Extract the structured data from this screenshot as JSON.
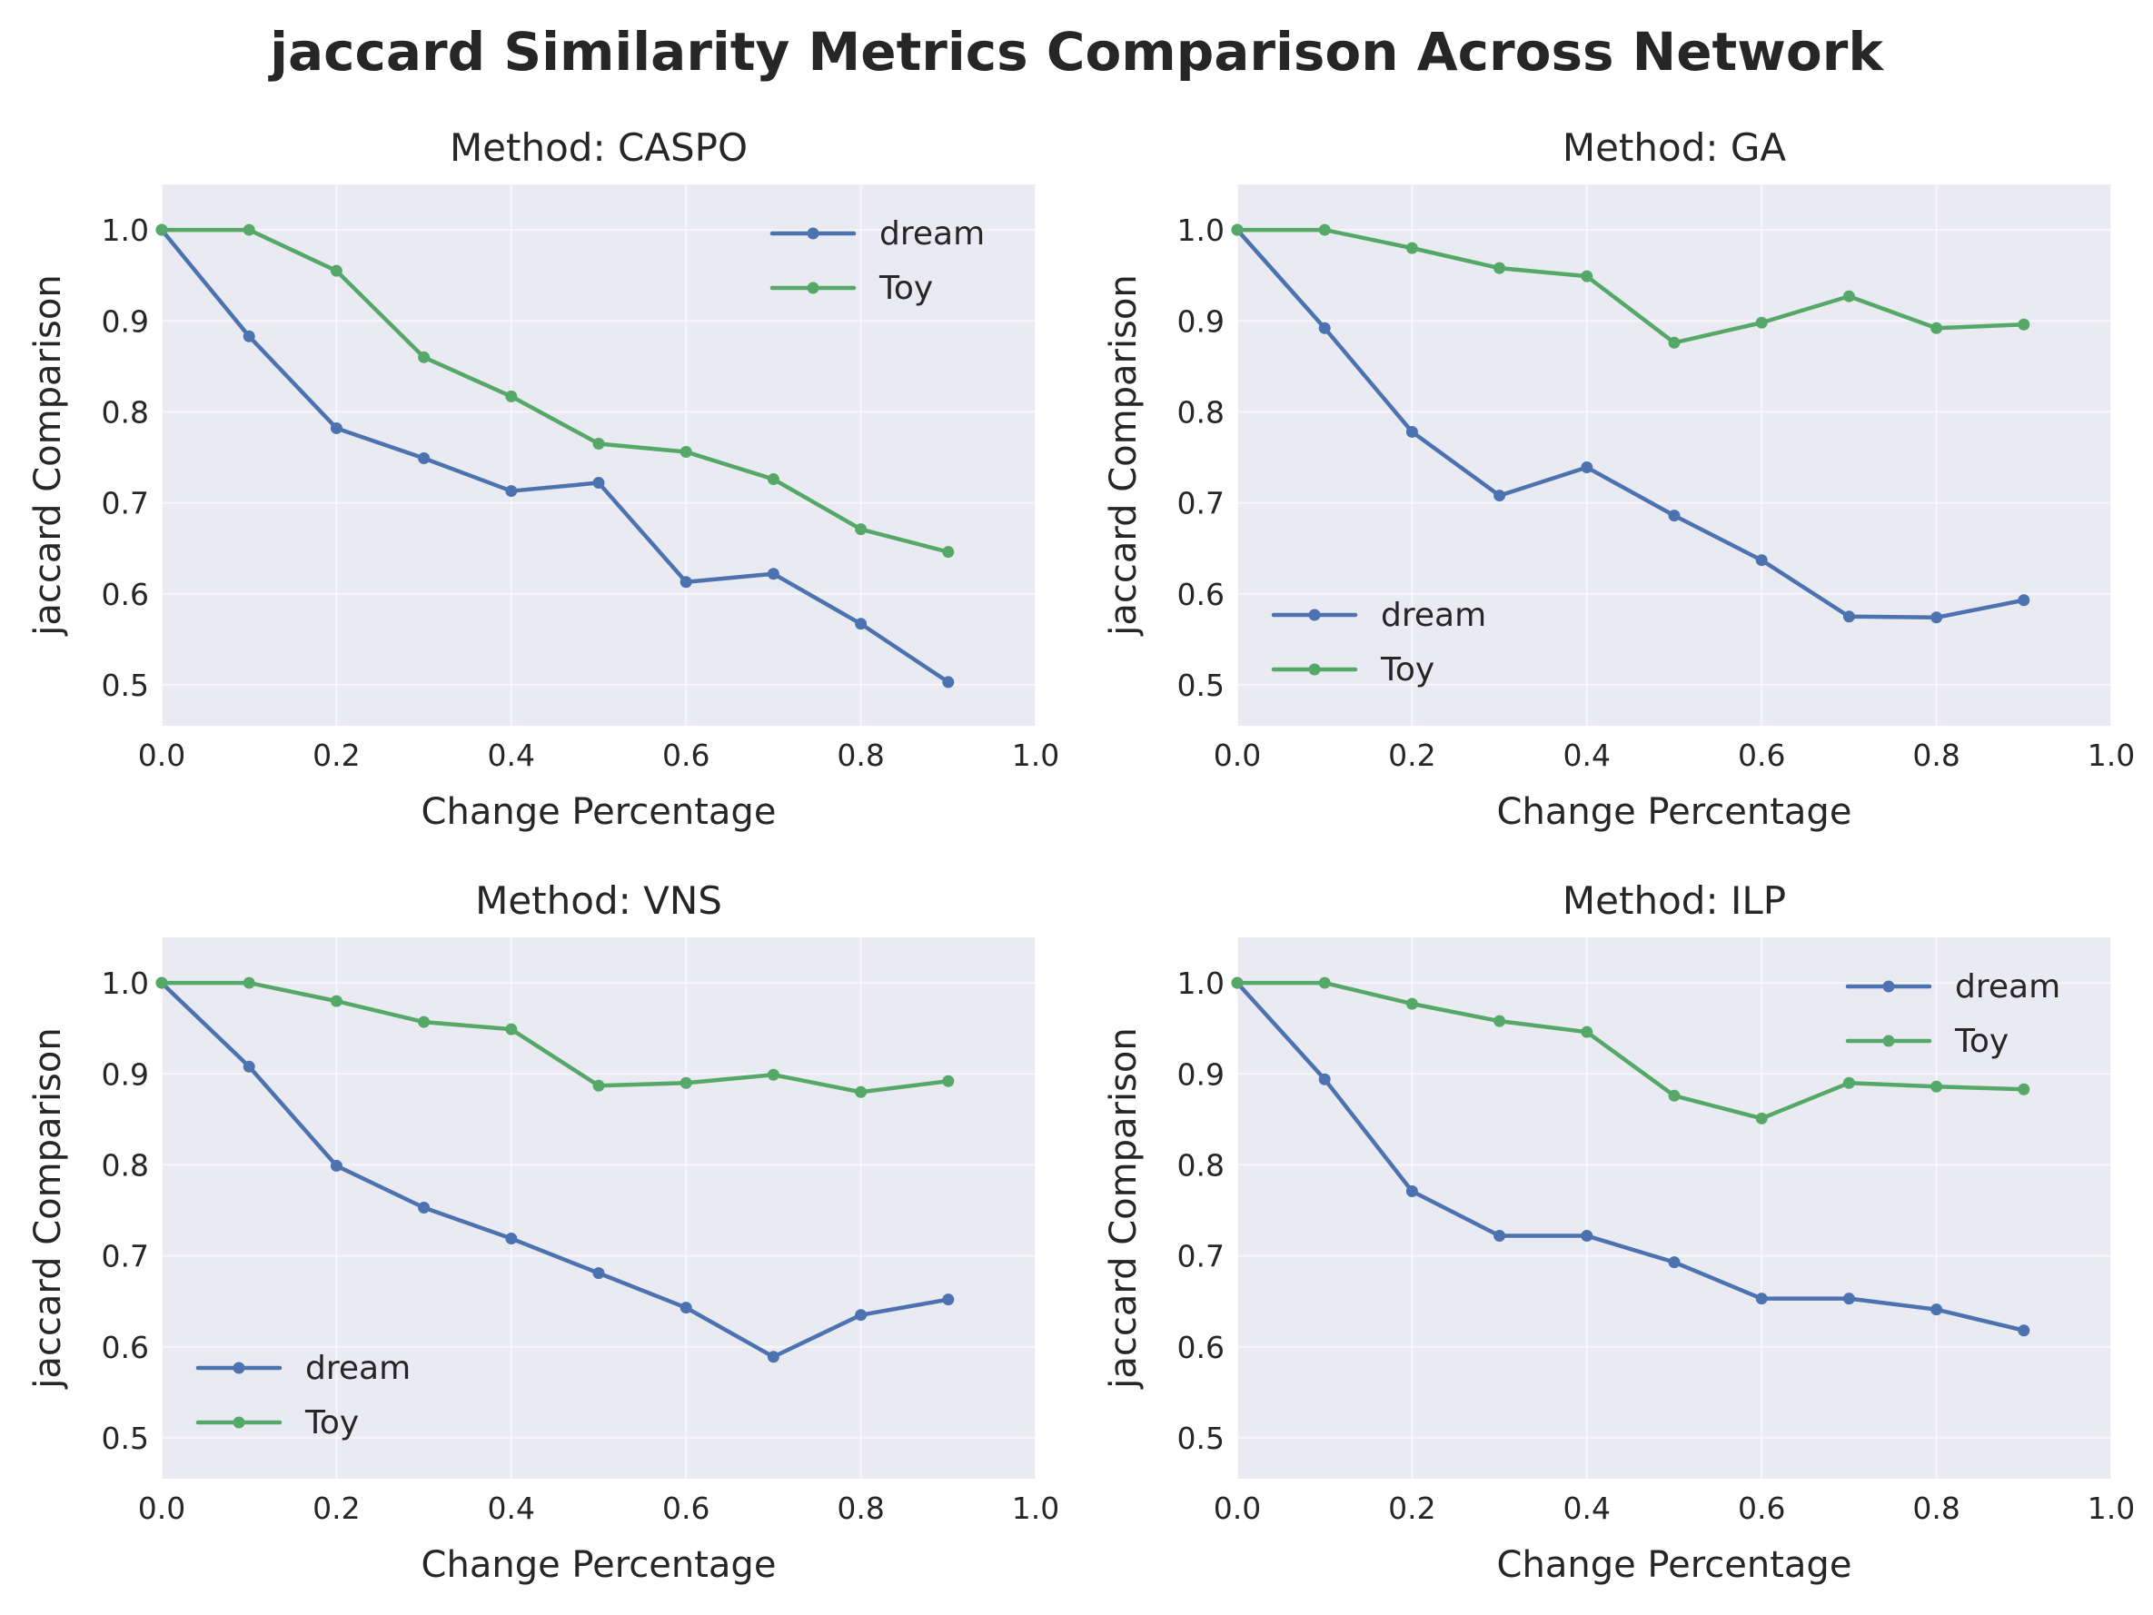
{
  "suptitle": "jaccard Similarity Metrics Comparison Across Network",
  "colors": {
    "dream": "#4c72b0",
    "Toy": "#55a868",
    "panel_bg": "#eaeaf2",
    "grid": "#ffffff"
  },
  "chart_data": [
    {
      "type": "line",
      "title": "Method: CASPO",
      "xlabel": "Change Percentage",
      "ylabel": "jaccard Comparison",
      "xlim": [
        0,
        1
      ],
      "ylim": [
        0.455,
        1.05
      ],
      "xticks": [
        "0.0",
        "0.2",
        "0.4",
        "0.6",
        "0.8",
        "1.0"
      ],
      "yticks": [
        "0.5",
        "0.6",
        "0.7",
        "0.8",
        "0.9",
        "1.0"
      ],
      "grid": true,
      "legend": "upper-right",
      "x": [
        0.0,
        0.1,
        0.2,
        0.3,
        0.4,
        0.5,
        0.6,
        0.7,
        0.8,
        0.9
      ],
      "series": [
        {
          "name": "dream",
          "values": [
            1.0,
            0.883,
            0.782,
            0.749,
            0.713,
            0.722,
            0.613,
            0.622,
            0.567,
            0.503
          ]
        },
        {
          "name": "Toy",
          "values": [
            1.0,
            1.0,
            0.955,
            0.86,
            0.817,
            0.765,
            0.756,
            0.726,
            0.671,
            0.646
          ]
        }
      ]
    },
    {
      "type": "line",
      "title": "Method: GA",
      "xlabel": "Change Percentage",
      "ylabel": "jaccard Comparison",
      "xlim": [
        0,
        1
      ],
      "ylim": [
        0.455,
        1.05
      ],
      "xticks": [
        "0.0",
        "0.2",
        "0.4",
        "0.6",
        "0.8",
        "1.0"
      ],
      "yticks": [
        "0.5",
        "0.6",
        "0.7",
        "0.8",
        "0.9",
        "1.0"
      ],
      "grid": true,
      "legend": "lower-left",
      "x": [
        0.0,
        0.1,
        0.2,
        0.3,
        0.4,
        0.5,
        0.6,
        0.7,
        0.8,
        0.9
      ],
      "series": [
        {
          "name": "dream",
          "values": [
            1.0,
            0.892,
            0.778,
            0.708,
            0.739,
            0.686,
            0.637,
            0.575,
            0.574,
            0.593
          ]
        },
        {
          "name": "Toy",
          "values": [
            1.0,
            1.0,
            0.98,
            0.958,
            0.949,
            0.876,
            0.898,
            0.927,
            0.892,
            0.896
          ]
        }
      ]
    },
    {
      "type": "line",
      "title": "Method: VNS",
      "xlabel": "Change Percentage",
      "ylabel": "jaccard Comparison",
      "xlim": [
        0,
        1
      ],
      "ylim": [
        0.455,
        1.05
      ],
      "xticks": [
        "0.0",
        "0.2",
        "0.4",
        "0.6",
        "0.8",
        "1.0"
      ],
      "yticks": [
        "0.5",
        "0.6",
        "0.7",
        "0.8",
        "0.9",
        "1.0"
      ],
      "grid": true,
      "legend": "lower-left",
      "x": [
        0.0,
        0.1,
        0.2,
        0.3,
        0.4,
        0.5,
        0.6,
        0.7,
        0.8,
        0.9
      ],
      "series": [
        {
          "name": "dream",
          "values": [
            1.0,
            0.908,
            0.799,
            0.753,
            0.719,
            0.681,
            0.643,
            0.589,
            0.635,
            0.652
          ]
        },
        {
          "name": "Toy",
          "values": [
            1.0,
            1.0,
            0.98,
            0.957,
            0.949,
            0.887,
            0.89,
            0.899,
            0.88,
            0.892
          ]
        }
      ]
    },
    {
      "type": "line",
      "title": "Method: ILP",
      "xlabel": "Change Percentage",
      "ylabel": "jaccard Comparison",
      "xlim": [
        0,
        1
      ],
      "ylim": [
        0.455,
        1.05
      ],
      "xticks": [
        "0.0",
        "0.2",
        "0.4",
        "0.6",
        "0.8",
        "1.0"
      ],
      "yticks": [
        "0.5",
        "0.6",
        "0.7",
        "0.8",
        "0.9",
        "1.0"
      ],
      "grid": true,
      "legend": "upper-right",
      "x": [
        0.0,
        0.1,
        0.2,
        0.3,
        0.4,
        0.5,
        0.6,
        0.7,
        0.8,
        0.9
      ],
      "series": [
        {
          "name": "dream",
          "values": [
            1.0,
            0.894,
            0.771,
            0.722,
            0.722,
            0.693,
            0.653,
            0.653,
            0.641,
            0.618
          ]
        },
        {
          "name": "Toy",
          "values": [
            1.0,
            1.0,
            0.977,
            0.958,
            0.946,
            0.876,
            0.851,
            0.89,
            0.886,
            0.883
          ]
        }
      ]
    }
  ]
}
